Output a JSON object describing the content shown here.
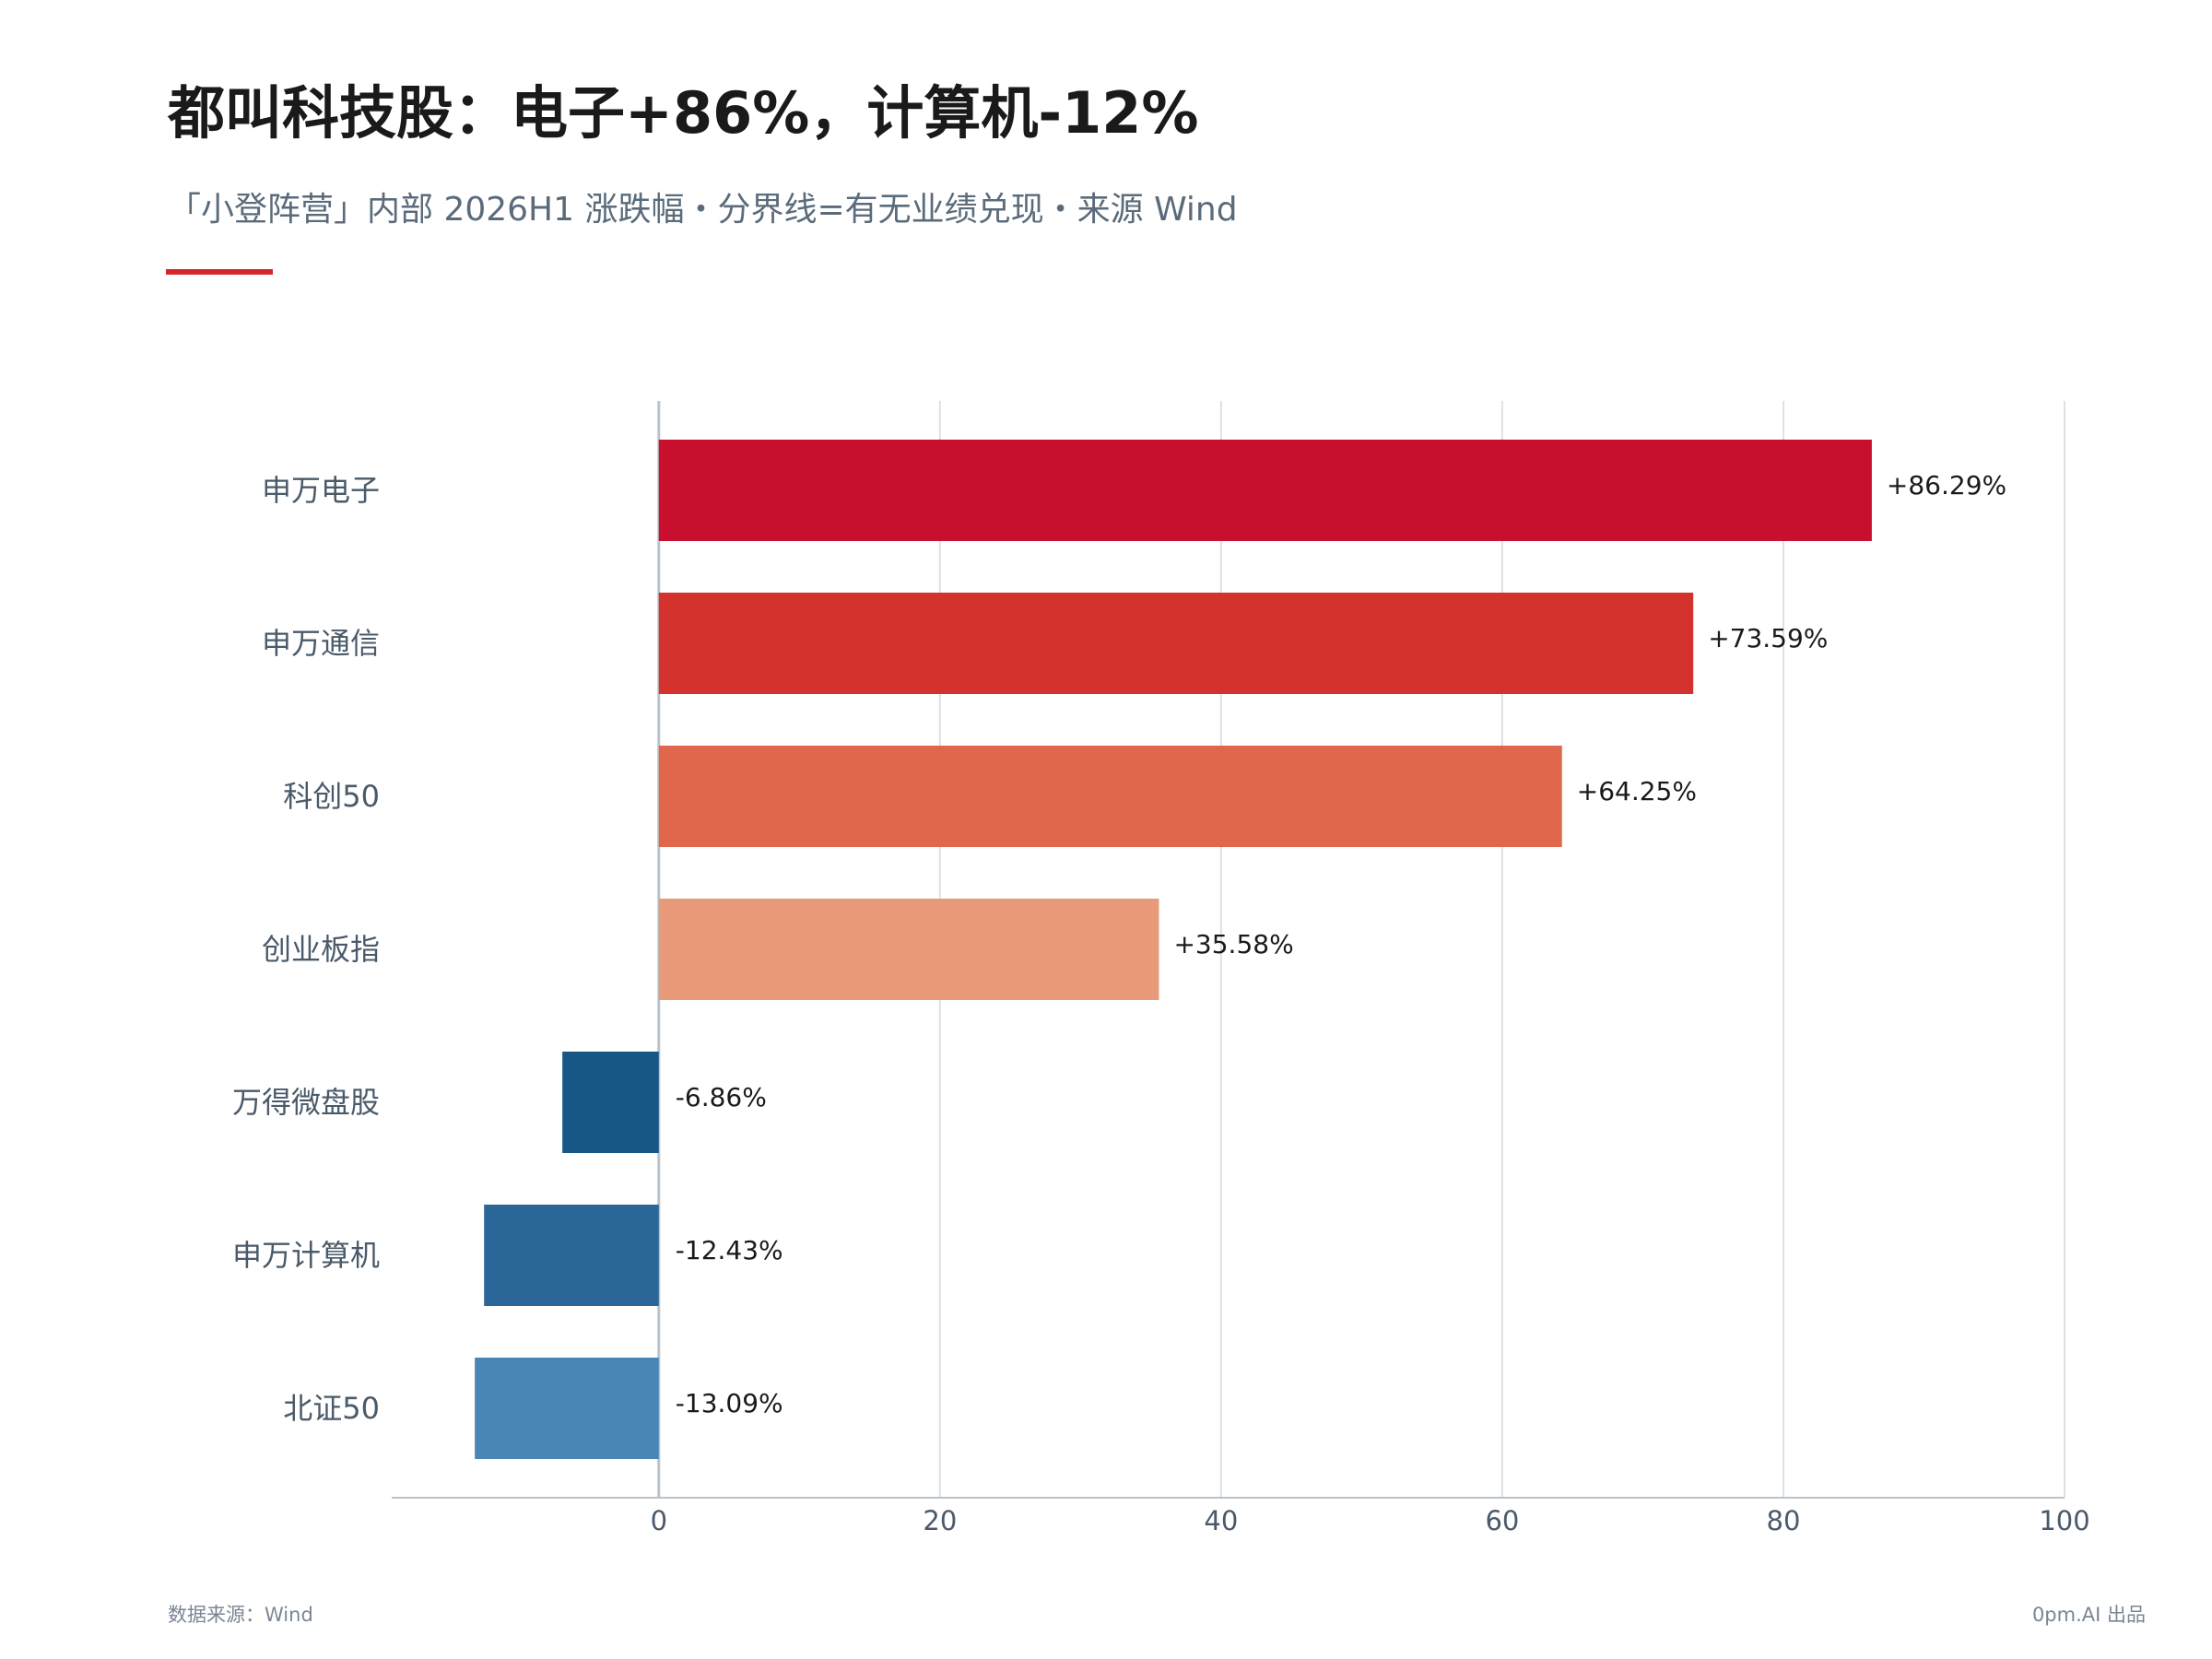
{
  "title": "都叫科技股：电子+86%，计算机-12%",
  "subtitle": "「小登阵营」内部 2026H1 涨跌幅・分界线=有无业绩兑现・来源 Wind",
  "footer": {
    "source": "数据来源：Wind",
    "credit": "0pm.AI 出品"
  },
  "colors": {
    "accent": "#d62728",
    "grid": "#dde1e6",
    "axis": "#b9c3cc",
    "label": "#4a5a6a"
  },
  "chart_data": {
    "type": "bar",
    "orientation": "horizontal",
    "categories": [
      "申万电子",
      "申万通信",
      "科创50",
      "创业板指",
      "万得微盘股",
      "申万计算机",
      "北证50"
    ],
    "values": [
      86.29,
      73.59,
      64.25,
      35.58,
      -6.86,
      -12.43,
      -13.09
    ],
    "value_labels": [
      "+86.29%",
      "+73.59%",
      "+64.25%",
      "+35.58%",
      "-6.86%",
      "-12.43%",
      "-13.09%"
    ],
    "bar_colors": [
      "#c8102e",
      "#d4322c",
      "#e0674c",
      "#e89a78",
      "#175788",
      "#2b6699",
      "#4986b5"
    ],
    "xlim": [
      -19,
      100
    ],
    "xticks": [
      0,
      20,
      40,
      60,
      80,
      100
    ],
    "xtick_labels": [
      "0",
      "20",
      "40",
      "60",
      "80",
      "100"
    ],
    "grid": true,
    "legend": "none"
  }
}
